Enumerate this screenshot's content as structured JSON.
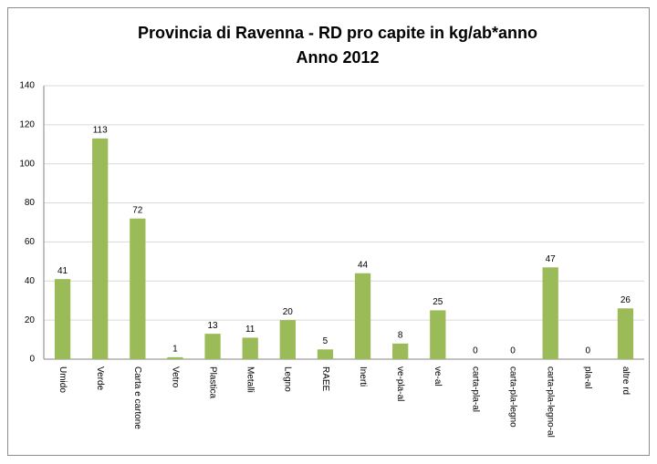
{
  "chart_data": {
    "type": "bar",
    "title": "Provincia di Ravenna - RD pro capite in kg/ab*anno",
    "subtitle": "Anno 2012",
    "categories": [
      "Umido",
      "Verde",
      "Carta e cartone",
      "Vetro",
      "Plastica",
      "Metalli",
      "Legno",
      "RAEE",
      "Inerti",
      "ve-pla-al",
      "ve-al",
      "carta-pla-al",
      "carta-pla-legno",
      "carta-pla-legno-al",
      "pla-al",
      "altre rd"
    ],
    "values": [
      41,
      113,
      72,
      1,
      13,
      11,
      20,
      5,
      44,
      8,
      25,
      0,
      0,
      47,
      0,
      26
    ],
    "color": "#9bbb59",
    "ylim": [
      0,
      140
    ],
    "yticks": [
      0,
      20,
      40,
      60,
      80,
      100,
      120,
      140
    ],
    "grid": true
  }
}
